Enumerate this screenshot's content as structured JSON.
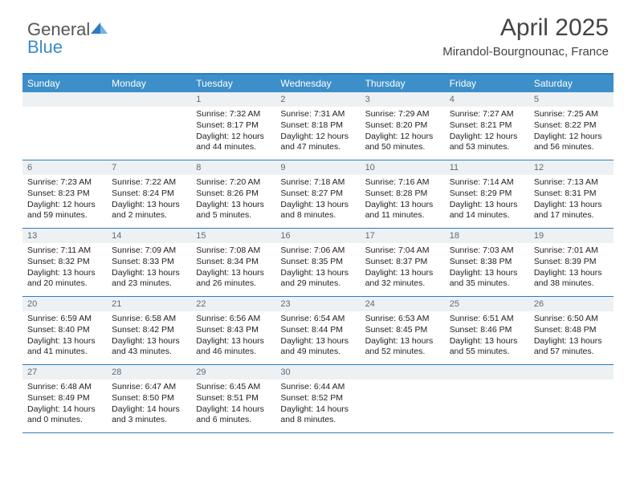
{
  "brand": {
    "part1": "General",
    "part2": "Blue"
  },
  "title": "April 2025",
  "location": "Mirandol-Bourgnounac, France",
  "colors": {
    "header_bg": "#3d8fc9",
    "rule": "#2f7bbf",
    "daynum_bg": "#eef1f3",
    "daynum_fg": "#5b6b78",
    "text": "#222222",
    "brand_gray": "#555555",
    "brand_blue": "#3a8bc9",
    "page_bg": "#ffffff"
  },
  "fonts": {
    "title_size": 30,
    "location_size": 15,
    "dayhead_size": 12,
    "cell_size": 10.5
  },
  "dayheaders": [
    "Sunday",
    "Monday",
    "Tuesday",
    "Wednesday",
    "Thursday",
    "Friday",
    "Saturday"
  ],
  "weeks": [
    [
      null,
      null,
      {
        "n": "1",
        "sunrise": "7:32 AM",
        "sunset": "8:17 PM",
        "dl": "12 hours and 44 minutes."
      },
      {
        "n": "2",
        "sunrise": "7:31 AM",
        "sunset": "8:18 PM",
        "dl": "12 hours and 47 minutes."
      },
      {
        "n": "3",
        "sunrise": "7:29 AM",
        "sunset": "8:20 PM",
        "dl": "12 hours and 50 minutes."
      },
      {
        "n": "4",
        "sunrise": "7:27 AM",
        "sunset": "8:21 PM",
        "dl": "12 hours and 53 minutes."
      },
      {
        "n": "5",
        "sunrise": "7:25 AM",
        "sunset": "8:22 PM",
        "dl": "12 hours and 56 minutes."
      }
    ],
    [
      {
        "n": "6",
        "sunrise": "7:23 AM",
        "sunset": "8:23 PM",
        "dl": "12 hours and 59 minutes."
      },
      {
        "n": "7",
        "sunrise": "7:22 AM",
        "sunset": "8:24 PM",
        "dl": "13 hours and 2 minutes."
      },
      {
        "n": "8",
        "sunrise": "7:20 AM",
        "sunset": "8:26 PM",
        "dl": "13 hours and 5 minutes."
      },
      {
        "n": "9",
        "sunrise": "7:18 AM",
        "sunset": "8:27 PM",
        "dl": "13 hours and 8 minutes."
      },
      {
        "n": "10",
        "sunrise": "7:16 AM",
        "sunset": "8:28 PM",
        "dl": "13 hours and 11 minutes."
      },
      {
        "n": "11",
        "sunrise": "7:14 AM",
        "sunset": "8:29 PM",
        "dl": "13 hours and 14 minutes."
      },
      {
        "n": "12",
        "sunrise": "7:13 AM",
        "sunset": "8:31 PM",
        "dl": "13 hours and 17 minutes."
      }
    ],
    [
      {
        "n": "13",
        "sunrise": "7:11 AM",
        "sunset": "8:32 PM",
        "dl": "13 hours and 20 minutes."
      },
      {
        "n": "14",
        "sunrise": "7:09 AM",
        "sunset": "8:33 PM",
        "dl": "13 hours and 23 minutes."
      },
      {
        "n": "15",
        "sunrise": "7:08 AM",
        "sunset": "8:34 PM",
        "dl": "13 hours and 26 minutes."
      },
      {
        "n": "16",
        "sunrise": "7:06 AM",
        "sunset": "8:35 PM",
        "dl": "13 hours and 29 minutes."
      },
      {
        "n": "17",
        "sunrise": "7:04 AM",
        "sunset": "8:37 PM",
        "dl": "13 hours and 32 minutes."
      },
      {
        "n": "18",
        "sunrise": "7:03 AM",
        "sunset": "8:38 PM",
        "dl": "13 hours and 35 minutes."
      },
      {
        "n": "19",
        "sunrise": "7:01 AM",
        "sunset": "8:39 PM",
        "dl": "13 hours and 38 minutes."
      }
    ],
    [
      {
        "n": "20",
        "sunrise": "6:59 AM",
        "sunset": "8:40 PM",
        "dl": "13 hours and 41 minutes."
      },
      {
        "n": "21",
        "sunrise": "6:58 AM",
        "sunset": "8:42 PM",
        "dl": "13 hours and 43 minutes."
      },
      {
        "n": "22",
        "sunrise": "6:56 AM",
        "sunset": "8:43 PM",
        "dl": "13 hours and 46 minutes."
      },
      {
        "n": "23",
        "sunrise": "6:54 AM",
        "sunset": "8:44 PM",
        "dl": "13 hours and 49 minutes."
      },
      {
        "n": "24",
        "sunrise": "6:53 AM",
        "sunset": "8:45 PM",
        "dl": "13 hours and 52 minutes."
      },
      {
        "n": "25",
        "sunrise": "6:51 AM",
        "sunset": "8:46 PM",
        "dl": "13 hours and 55 minutes."
      },
      {
        "n": "26",
        "sunrise": "6:50 AM",
        "sunset": "8:48 PM",
        "dl": "13 hours and 57 minutes."
      }
    ],
    [
      {
        "n": "27",
        "sunrise": "6:48 AM",
        "sunset": "8:49 PM",
        "dl": "14 hours and 0 minutes."
      },
      {
        "n": "28",
        "sunrise": "6:47 AM",
        "sunset": "8:50 PM",
        "dl": "14 hours and 3 minutes."
      },
      {
        "n": "29",
        "sunrise": "6:45 AM",
        "sunset": "8:51 PM",
        "dl": "14 hours and 6 minutes."
      },
      {
        "n": "30",
        "sunrise": "6:44 AM",
        "sunset": "8:52 PM",
        "dl": "14 hours and 8 minutes."
      },
      null,
      null,
      null
    ]
  ]
}
